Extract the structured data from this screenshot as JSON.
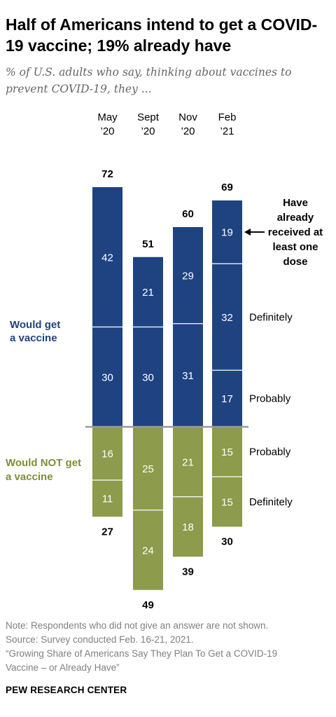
{
  "title": "Half of Americans intend to get a COVID-19 vaccine; 19% already have",
  "subtitle": "% of U.S. adults who say, thinking about vaccines to prevent COVID-19, they ...",
  "colors": {
    "would_get": "#1f4380",
    "would_not": "#8c9b4c",
    "axis": "#999999",
    "group_get_label": "#1f4380",
    "group_not_label": "#7e8f38"
  },
  "chart_data": {
    "type": "bar",
    "stacked": "diverging",
    "categories": [
      {
        "line1": "May",
        "line2": "’20"
      },
      {
        "line1": "Sept",
        "line2": "’20"
      },
      {
        "line1": "Nov",
        "line2": "’20"
      },
      {
        "line1": "Feb",
        "line2": "’21"
      }
    ],
    "would_get_label": [
      "Would get",
      "a vaccine"
    ],
    "would_not_label": [
      "Would NOT get",
      "a vaccine"
    ],
    "would_get_totals": [
      72,
      51,
      60,
      69
    ],
    "would_not_totals": [
      27,
      49,
      39,
      30
    ],
    "would_get_segments": [
      [
        {
          "key": "probably",
          "value": 30
        },
        {
          "key": "definitely",
          "value": 42
        }
      ],
      [
        {
          "key": "probably",
          "value": 30
        },
        {
          "key": "definitely",
          "value": 21
        }
      ],
      [
        {
          "key": "probably",
          "value": 31
        },
        {
          "key": "definitely",
          "value": 29
        }
      ],
      [
        {
          "key": "probably",
          "value": 17
        },
        {
          "key": "definitely",
          "value": 32
        },
        {
          "key": "already_received",
          "value": 19
        }
      ]
    ],
    "would_not_segments": [
      [
        {
          "key": "probably_not",
          "value": 16
        },
        {
          "key": "definitely_not",
          "value": 11
        }
      ],
      [
        {
          "key": "probably_not",
          "value": 25
        },
        {
          "key": "definitely_not",
          "value": 24
        }
      ],
      [
        {
          "key": "probably_not",
          "value": 21
        },
        {
          "key": "definitely_not",
          "value": 18
        }
      ],
      [
        {
          "key": "probably_not",
          "value": 15
        },
        {
          "key": "definitely_not",
          "value": 15
        }
      ]
    ],
    "segment_labels": {
      "already_received": [
        "Have",
        "already",
        "received at",
        "least one",
        "dose"
      ],
      "definitely": "Definitely",
      "probably": "Probably",
      "probably_not": "Probably",
      "definitely_not": "Definitely"
    }
  },
  "notes": [
    "Note: Respondents who did not give an answer are not shown.",
    "Source: Survey conducted Feb. 16-21, 2021.",
    "“Growing Share of Americans Say They Plan To Get a COVID-19",
    "Vaccine – or Already Have”"
  ],
  "brand": "PEW RESEARCH CENTER"
}
